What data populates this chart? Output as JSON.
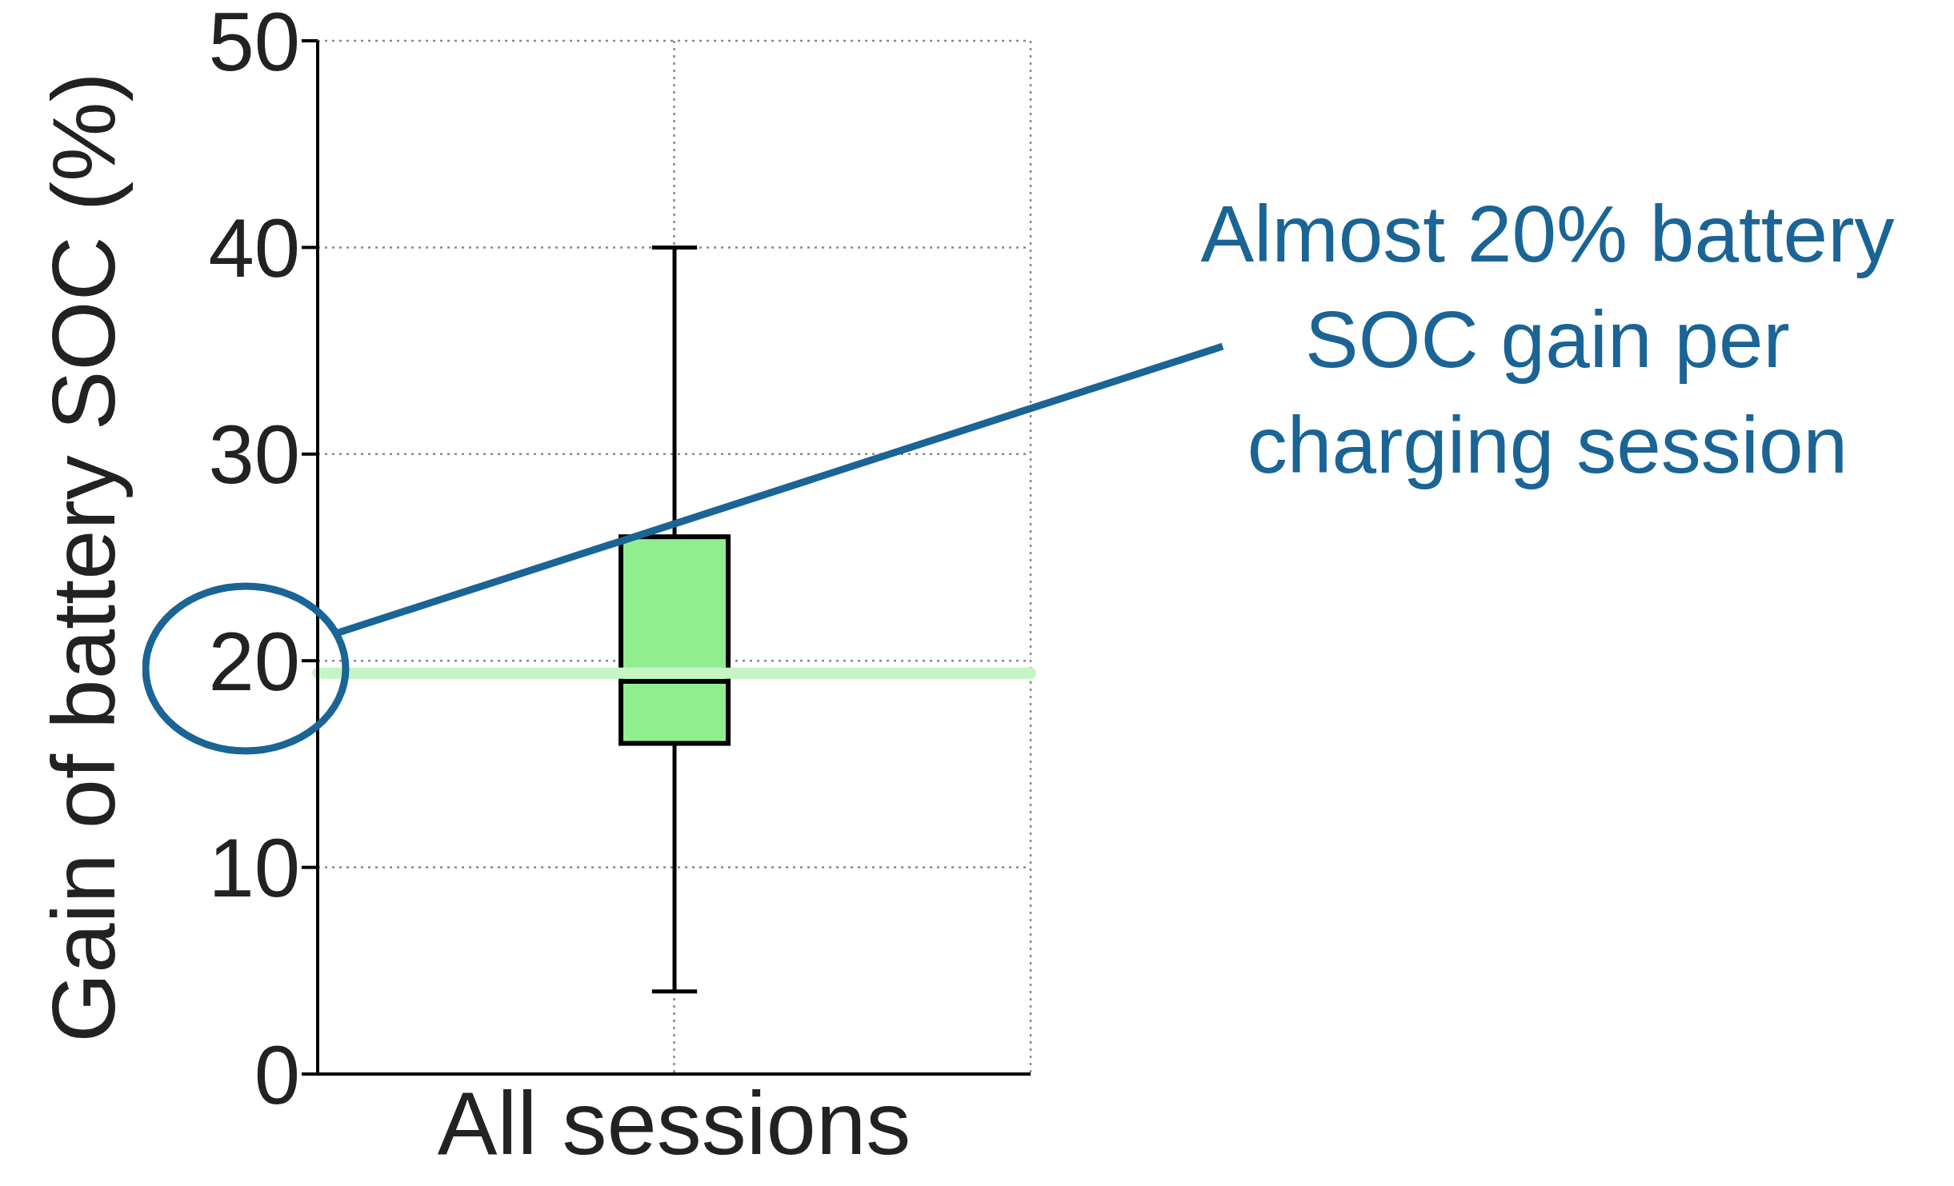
{
  "chart_data": {
    "type": "box",
    "categories": [
      "All sessions"
    ],
    "ylabel": "Gain of battery SOC (%)",
    "ylim": [
      0,
      50
    ],
    "yticks": [
      0,
      10,
      20,
      30,
      40,
      50
    ],
    "grid": true,
    "series": [
      {
        "color": "#90ee90",
        "boxes": [
          {
            "low": 4,
            "q1": 16,
            "median": 19,
            "q3": 26,
            "high": 40
          }
        ]
      }
    ],
    "ref_lines": [
      {
        "axis": "y",
        "value": 19.4,
        "color": "#c5f5c5"
      }
    ],
    "annotations": [
      "Almost 20% battery SOC gain per charging session"
    ]
  }
}
